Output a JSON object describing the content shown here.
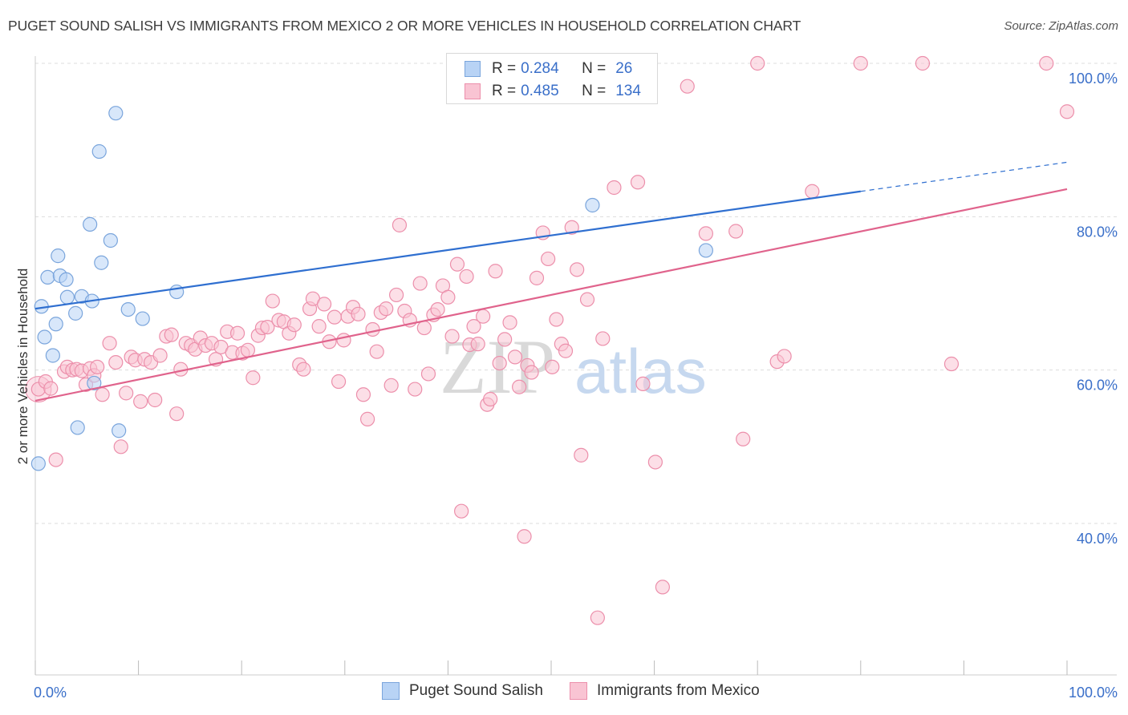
{
  "title": "PUGET SOUND SALISH VS IMMIGRANTS FROM MEXICO 2 OR MORE VEHICLES IN HOUSEHOLD CORRELATION CHART",
  "source": "Source: ZipAtlas.com",
  "watermark": {
    "zip": "ZIP",
    "atlas": "atlas"
  },
  "colors": {
    "blue_fill": "#b8d3f5",
    "blue_stroke": "#7aa5dc",
    "blue_line": "#2f6fd0",
    "pink_fill": "#f9c4d3",
    "pink_stroke": "#ec8fab",
    "pink_line": "#e0638c",
    "axis_label": "#3a6fc9",
    "grid": "#dddddd"
  },
  "legend_top": [
    {
      "r_label": "R =",
      "r": "0.284",
      "n_label": "N =",
      "n": "26",
      "color": "blue"
    },
    {
      "r_label": "R =",
      "r": "0.485",
      "n_label": "N =",
      "n": "134",
      "color": "pink"
    }
  ],
  "legend_bottom": [
    "Puget Sound Salish",
    "Immigrants from Mexico"
  ],
  "chart_data": {
    "type": "scatter",
    "title": "PUGET SOUND SALISH VS IMMIGRANTS FROM MEXICO 2 OR MORE VEHICLES IN HOUSEHOLD CORRELATION CHART",
    "xlabel": "",
    "ylabel": "2 or more Vehicles in Household",
    "xlim": [
      0,
      100
    ],
    "ylim": [
      20,
      101
    ],
    "x_tick_labels": [
      "0.0%",
      "100.0%"
    ],
    "y_ticks": [
      40,
      60,
      80,
      100
    ],
    "y_tick_labels": [
      "40.0%",
      "60.0%",
      "80.0%",
      "100.0%"
    ],
    "grid": true,
    "legend_placement": "top-center",
    "series": [
      {
        "name": "Puget Sound Salish",
        "color": "blue",
        "R": 0.284,
        "N": 26,
        "trend": {
          "x0": 0,
          "y0": 68.0,
          "x1": 80,
          "y1": 83.3,
          "dash_to_x": 100,
          "dash_to_y": 87.1
        },
        "points": [
          [
            0.3,
            47.8
          ],
          [
            0.6,
            68.3
          ],
          [
            0.9,
            64.3
          ],
          [
            1.2,
            72.1
          ],
          [
            1.7,
            61.9
          ],
          [
            2.0,
            66.0
          ],
          [
            2.2,
            74.9
          ],
          [
            2.4,
            72.3
          ],
          [
            3.0,
            71.8
          ],
          [
            3.1,
            69.5
          ],
          [
            3.9,
            67.4
          ],
          [
            4.1,
            52.5
          ],
          [
            4.5,
            69.6
          ],
          [
            5.3,
            79.0
          ],
          [
            5.5,
            69.0
          ],
          [
            5.7,
            58.3
          ],
          [
            6.2,
            88.5
          ],
          [
            6.4,
            74.0
          ],
          [
            7.3,
            76.9
          ],
          [
            7.8,
            93.5
          ],
          [
            8.1,
            52.1
          ],
          [
            9.0,
            67.9
          ],
          [
            10.4,
            66.7
          ],
          [
            13.7,
            70.2
          ],
          [
            54.0,
            81.5
          ],
          [
            65.0,
            75.6
          ]
        ]
      },
      {
        "name": "Immigrants from Mexico",
        "color": "pink",
        "R": 0.485,
        "N": 134,
        "trend": {
          "x0": 0,
          "y0": 56.0,
          "x1": 100,
          "y1": 83.6
        },
        "points": [
          [
            0.3,
            57.5
          ],
          [
            1.0,
            58.5
          ],
          [
            1.5,
            57.6
          ],
          [
            2.0,
            48.3
          ],
          [
            2.8,
            59.8
          ],
          [
            3.1,
            60.4
          ],
          [
            3.6,
            60.0
          ],
          [
            4.0,
            60.1
          ],
          [
            4.5,
            59.9
          ],
          [
            4.9,
            58.1
          ],
          [
            5.3,
            60.2
          ],
          [
            5.7,
            59.3
          ],
          [
            6.0,
            60.4
          ],
          [
            6.5,
            56.8
          ],
          [
            7.2,
            63.5
          ],
          [
            7.8,
            61.0
          ],
          [
            8.3,
            50.0
          ],
          [
            8.8,
            57.0
          ],
          [
            9.3,
            61.7
          ],
          [
            9.7,
            61.3
          ],
          [
            10.2,
            55.9
          ],
          [
            10.6,
            61.4
          ],
          [
            11.2,
            61.0
          ],
          [
            11.6,
            56.1
          ],
          [
            12.1,
            61.9
          ],
          [
            12.7,
            64.4
          ],
          [
            13.2,
            64.6
          ],
          [
            13.7,
            54.3
          ],
          [
            14.1,
            60.1
          ],
          [
            14.6,
            63.5
          ],
          [
            15.1,
            63.2
          ],
          [
            15.5,
            62.7
          ],
          [
            16.0,
            64.2
          ],
          [
            16.5,
            63.2
          ],
          [
            17.1,
            63.5
          ],
          [
            17.5,
            61.4
          ],
          [
            18.0,
            63.0
          ],
          [
            18.6,
            65.0
          ],
          [
            19.1,
            62.3
          ],
          [
            19.6,
            64.8
          ],
          [
            20.1,
            62.2
          ],
          [
            20.6,
            62.6
          ],
          [
            21.1,
            59.0
          ],
          [
            21.6,
            64.5
          ],
          [
            22.0,
            65.5
          ],
          [
            22.5,
            65.6
          ],
          [
            23.0,
            69.0
          ],
          [
            23.6,
            66.5
          ],
          [
            24.1,
            66.3
          ],
          [
            24.6,
            64.8
          ],
          [
            25.1,
            65.9
          ],
          [
            25.6,
            60.7
          ],
          [
            26.0,
            60.1
          ],
          [
            26.6,
            68.0
          ],
          [
            26.9,
            69.3
          ],
          [
            27.5,
            65.7
          ],
          [
            28.0,
            68.6
          ],
          [
            28.5,
            63.7
          ],
          [
            29.0,
            66.9
          ],
          [
            29.4,
            58.5
          ],
          [
            29.9,
            63.9
          ],
          [
            30.3,
            67.0
          ],
          [
            30.8,
            68.2
          ],
          [
            31.3,
            67.3
          ],
          [
            31.8,
            56.8
          ],
          [
            32.2,
            53.6
          ],
          [
            32.7,
            65.3
          ],
          [
            33.1,
            62.4
          ],
          [
            33.5,
            67.5
          ],
          [
            34.0,
            68.0
          ],
          [
            34.5,
            58.0
          ],
          [
            35.0,
            69.8
          ],
          [
            35.3,
            78.9
          ],
          [
            35.8,
            67.7
          ],
          [
            36.3,
            66.5
          ],
          [
            36.8,
            57.5
          ],
          [
            37.3,
            71.3
          ],
          [
            37.7,
            65.5
          ],
          [
            38.1,
            59.5
          ],
          [
            38.6,
            67.2
          ],
          [
            39.0,
            67.9
          ],
          [
            39.5,
            71.0
          ],
          [
            40.0,
            69.5
          ],
          [
            40.4,
            64.4
          ],
          [
            40.9,
            73.8
          ],
          [
            41.3,
            41.6
          ],
          [
            41.8,
            72.2
          ],
          [
            42.1,
            63.3
          ],
          [
            42.5,
            65.7
          ],
          [
            42.9,
            63.4
          ],
          [
            43.4,
            67.0
          ],
          [
            43.8,
            55.5
          ],
          [
            44.1,
            56.2
          ],
          [
            44.6,
            72.9
          ],
          [
            45.0,
            60.9
          ],
          [
            45.5,
            64.0
          ],
          [
            46.0,
            66.2
          ],
          [
            46.5,
            61.7
          ],
          [
            46.9,
            57.8
          ],
          [
            47.4,
            38.3
          ],
          [
            47.7,
            60.6
          ],
          [
            48.1,
            59.7
          ],
          [
            48.6,
            72.0
          ],
          [
            49.2,
            77.9
          ],
          [
            49.7,
            74.5
          ],
          [
            50.1,
            60.4
          ],
          [
            50.5,
            66.6
          ],
          [
            51.0,
            63.4
          ],
          [
            51.4,
            62.5
          ],
          [
            52.0,
            78.6
          ],
          [
            52.5,
            73.1
          ],
          [
            52.9,
            48.9
          ],
          [
            53.5,
            69.2
          ],
          [
            54.5,
            27.7
          ],
          [
            55.0,
            64.1
          ],
          [
            56.1,
            83.8
          ],
          [
            58.4,
            84.5
          ],
          [
            58.9,
            58.2
          ],
          [
            60.1,
            48.0
          ],
          [
            60.8,
            31.7
          ],
          [
            63.2,
            97.0
          ],
          [
            65.0,
            77.8
          ],
          [
            67.9,
            78.1
          ],
          [
            68.6,
            51.0
          ],
          [
            70.0,
            100.0
          ],
          [
            71.9,
            61.1
          ],
          [
            72.6,
            61.8
          ],
          [
            75.3,
            83.3
          ],
          [
            80.0,
            100.0
          ],
          [
            86.0,
            100.0
          ],
          [
            88.8,
            60.8
          ],
          [
            98.0,
            100.0
          ],
          [
            100.0,
            93.7
          ]
        ]
      }
    ]
  }
}
